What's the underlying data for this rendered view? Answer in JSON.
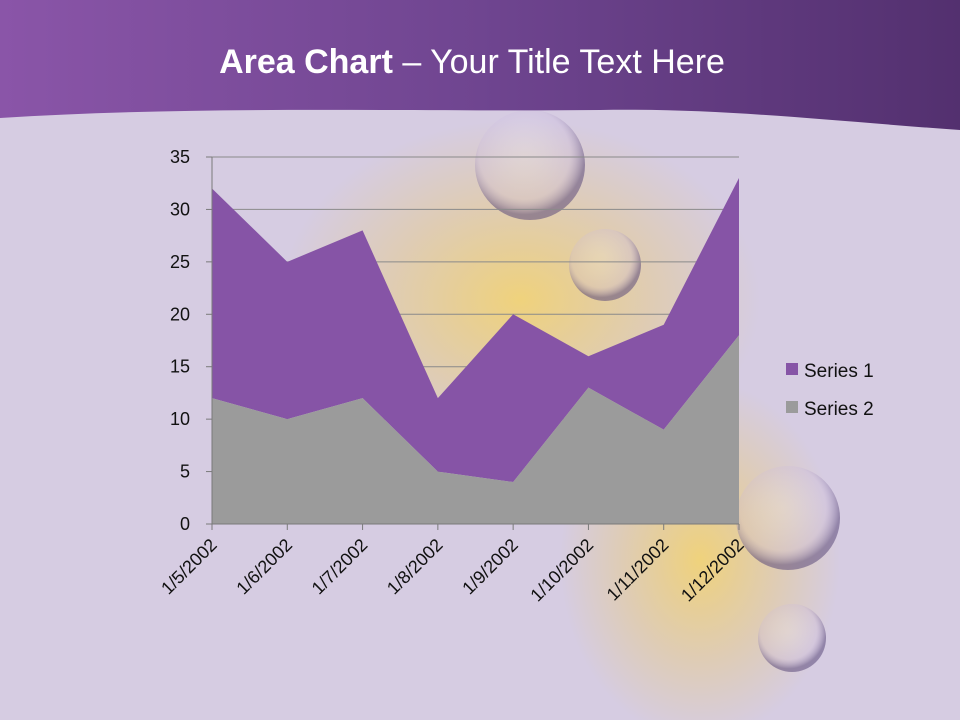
{
  "slide": {
    "title_bold": "Area Chart",
    "title_rest": " – Your Title Text Here"
  },
  "colors": {
    "header": "#6e3f8e",
    "series1": "#8654a6",
    "series2": "#9b9b9b"
  },
  "chart_data": {
    "type": "area",
    "title": "",
    "xlabel": "",
    "ylabel": "",
    "stacked": true,
    "categories": [
      "1/5/2002",
      "1/6/2002",
      "1/7/2002",
      "1/8/2002",
      "1/9/2002",
      "1/10/2002",
      "1/11/2002",
      "1/12/2002"
    ],
    "series": [
      {
        "name": "Series 1",
        "values": [
          20,
          15,
          16,
          7,
          16,
          3,
          10,
          15
        ]
      },
      {
        "name": "Series 2",
        "values": [
          12,
          10,
          12,
          5,
          4,
          13,
          9,
          18
        ]
      }
    ],
    "ylim": [
      0,
      35
    ],
    "yticks": [
      0,
      5,
      10,
      15,
      20,
      25,
      30,
      35
    ],
    "grid": true,
    "legend": "right"
  }
}
